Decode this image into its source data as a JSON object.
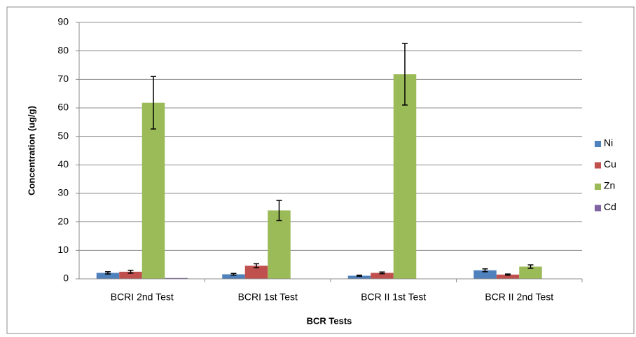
{
  "chart_data": {
    "type": "bar",
    "x_label": "BCR Tests",
    "y_label": "Concentration (ug/g)",
    "categories": [
      "BCRI 2nd Test",
      "BCRI 1st Test",
      "BCR II 1st Test",
      "BCR II 2nd Test"
    ],
    "series": [
      {
        "name": "Ni",
        "color": "#4f81bd",
        "values": [
          2.1,
          1.6,
          1.1,
          3.0
        ],
        "errors": [
          0.4,
          0.3,
          0.2,
          0.5
        ]
      },
      {
        "name": "Cu",
        "color": "#c0504d",
        "values": [
          2.5,
          4.6,
          2.1,
          1.5
        ],
        "errors": [
          0.5,
          0.7,
          0.3,
          0.2
        ]
      },
      {
        "name": "Zn",
        "color": "#9bbb59",
        "values": [
          61.8,
          24.0,
          71.8,
          4.3
        ],
        "errors": [
          9.2,
          3.5,
          10.8,
          0.6
        ]
      },
      {
        "name": "Cd",
        "color": "#8064a2",
        "values": [
          0.3,
          0,
          0,
          0
        ],
        "errors": [
          null,
          null,
          null,
          null
        ]
      }
    ],
    "ylim": [
      0,
      90
    ],
    "yticks": [
      0,
      10,
      20,
      30,
      40,
      50,
      60,
      70,
      80,
      90
    ],
    "grid": true,
    "legend": "right"
  }
}
